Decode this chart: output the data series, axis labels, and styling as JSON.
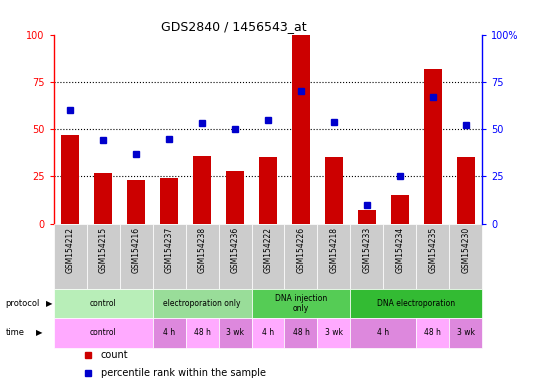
{
  "title": "GDS2840 / 1456543_at",
  "samples": [
    "GSM154212",
    "GSM154215",
    "GSM154216",
    "GSM154237",
    "GSM154238",
    "GSM154236",
    "GSM154222",
    "GSM154226",
    "GSM154218",
    "GSM154233",
    "GSM154234",
    "GSM154235",
    "GSM154230"
  ],
  "counts": [
    47,
    27,
    23,
    24,
    36,
    28,
    35,
    100,
    35,
    7,
    15,
    82,
    35
  ],
  "percentiles": [
    60,
    44,
    37,
    45,
    53,
    50,
    55,
    70,
    54,
    10,
    25,
    67,
    52
  ],
  "bar_color": "#cc0000",
  "dot_color": "#0000cc",
  "dotted_lines": [
    25,
    50,
    75
  ],
  "protocol_groups": [
    {
      "label": "control",
      "start": 0,
      "end": 3,
      "color": "#b8eeb8"
    },
    {
      "label": "electroporation only",
      "start": 3,
      "end": 6,
      "color": "#99dd99"
    },
    {
      "label": "DNA injection\nonly",
      "start": 6,
      "end": 9,
      "color": "#55cc55"
    },
    {
      "label": "DNA electroporation",
      "start": 9,
      "end": 13,
      "color": "#33bb33"
    }
  ],
  "time_groups": [
    {
      "label": "control",
      "start": 0,
      "end": 3,
      "color": "#ffaaff"
    },
    {
      "label": "4 h",
      "start": 3,
      "end": 4,
      "color": "#dd88dd"
    },
    {
      "label": "48 h",
      "start": 4,
      "end": 5,
      "color": "#ffaaff"
    },
    {
      "label": "3 wk",
      "start": 5,
      "end": 6,
      "color": "#dd88dd"
    },
    {
      "label": "4 h",
      "start": 6,
      "end": 7,
      "color": "#ffaaff"
    },
    {
      "label": "48 h",
      "start": 7,
      "end": 8,
      "color": "#dd88dd"
    },
    {
      "label": "3 wk",
      "start": 8,
      "end": 9,
      "color": "#ffaaff"
    },
    {
      "label": "4 h",
      "start": 9,
      "end": 11,
      "color": "#dd88dd"
    },
    {
      "label": "48 h",
      "start": 11,
      "end": 12,
      "color": "#ffaaff"
    },
    {
      "label": "3 wk",
      "start": 12,
      "end": 13,
      "color": "#dd88dd"
    }
  ],
  "sample_bg_color": "#cccccc",
  "background_color": "#ffffff"
}
